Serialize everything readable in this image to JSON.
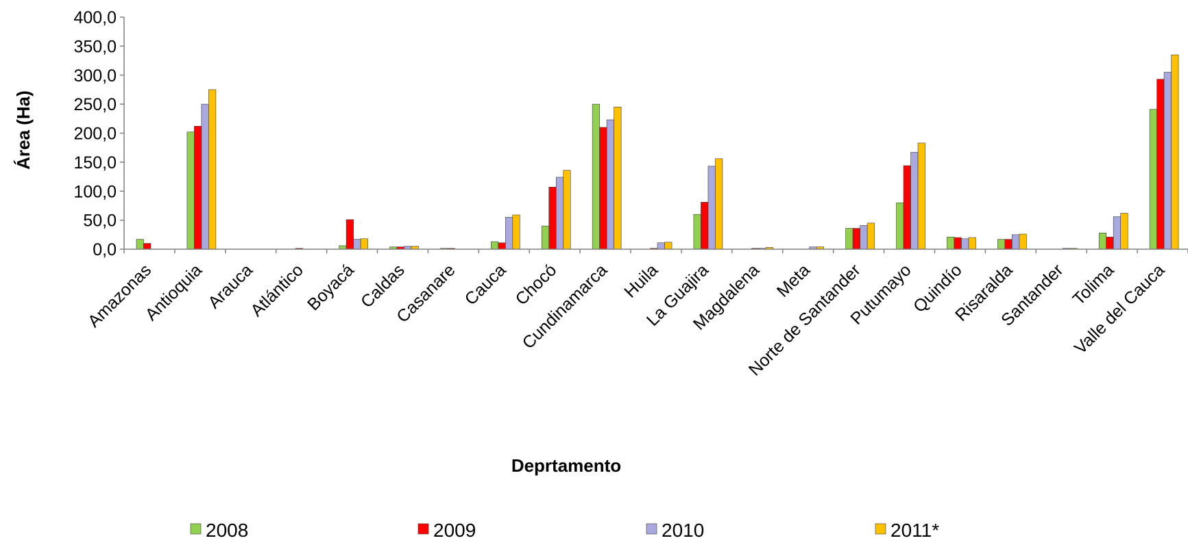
{
  "chart_data": {
    "type": "bar",
    "xlabel": "Deprtamento",
    "ylabel": "Área (Ha)",
    "ylim": [
      0,
      400
    ],
    "yticks": [
      "0,0",
      "50,0",
      "100,0",
      "150,0",
      "200,0",
      "250,0",
      "300,0",
      "350,0",
      "400,0"
    ],
    "grid": false,
    "legend_position": "bottom",
    "categories": [
      "Amazonas",
      "Antioquia",
      "Arauca",
      "Atlántico",
      "Boyacá",
      "Caldas",
      "Casanare",
      "Cauca",
      "Chocó",
      "Cundinamarca",
      "Huila",
      "La Guajira",
      "Magdalena",
      "Meta",
      "Norte de Santander",
      "Putumayo",
      "Quindío",
      "Risaralda",
      "Santander",
      "Tolima",
      "Valle del Cauca"
    ],
    "series": [
      {
        "name": "2008",
        "color": "#92D050",
        "values": [
          17,
          202,
          0,
          0,
          6,
          4,
          1.5,
          13,
          40,
          250,
          0,
          60,
          0,
          0,
          36,
          80,
          21,
          17,
          0,
          28,
          241
        ]
      },
      {
        "name": "2009",
        "color": "#FF0000",
        "values": [
          10,
          212,
          0,
          1.5,
          51,
          4,
          1.5,
          11,
          107,
          210,
          1.5,
          81,
          1.5,
          0,
          36,
          144,
          20,
          17,
          0,
          21,
          293
        ]
      },
      {
        "name": "2010",
        "color": "#A9A9E0",
        "values": [
          0,
          250,
          0,
          0,
          17,
          5,
          0,
          55,
          124,
          223,
          11,
          143,
          1.5,
          4,
          41,
          167,
          18,
          25,
          1.5,
          56,
          305
        ]
      },
      {
        "name": "2011*",
        "color": "#FFC000",
        "values": [
          0,
          275,
          0,
          0,
          18,
          5,
          0,
          59,
          136,
          245,
          12,
          156,
          3,
          4,
          45,
          183,
          20,
          26,
          1.5,
          62,
          335
        ]
      }
    ]
  }
}
